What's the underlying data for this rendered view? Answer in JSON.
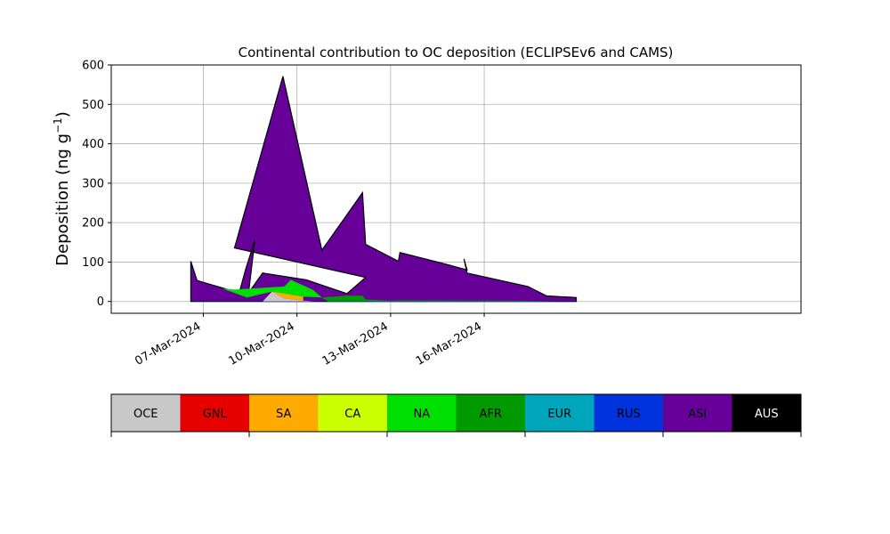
{
  "chart_data": {
    "type": "area",
    "title": "Continental contribution to OC deposition (ECLIPSEv6 and CAMS)",
    "xlabel": "",
    "ylabel": "Deposition (ng g⁻¹)",
    "ylabel_parts": {
      "main": "Deposition (ng g",
      "sup": "−1",
      "end": ")"
    },
    "ylim": [
      -30,
      600
    ],
    "yticks": [
      0,
      100,
      200,
      300,
      400,
      500,
      600
    ],
    "xlim_day": [
      4.05,
      26.15
    ],
    "xticks": [
      {
        "day": 7,
        "label": "07-Mar-2024"
      },
      {
        "day": 10,
        "label": "10-Mar-2024"
      },
      {
        "day": 13,
        "label": "13-Mar-2024"
      },
      {
        "day": 16,
        "label": "16-Mar-2024"
      }
    ],
    "grid": true,
    "legend_position": "below",
    "series": [
      {
        "name": "OCE",
        "color": "#c8c8c8"
      },
      {
        "name": "GNL",
        "color": "#e60000"
      },
      {
        "name": "SA",
        "color": "#ffaa00"
      },
      {
        "name": "CA",
        "color": "#ccff00"
      },
      {
        "name": "NA",
        "color": "#00e000"
      },
      {
        "name": "AFR",
        "color": "#009900"
      },
      {
        "name": "EUR",
        "color": "#00a6bb"
      },
      {
        "name": "RUS",
        "color": "#0033dd"
      },
      {
        "name": "ASI",
        "color": "#660099"
      },
      {
        "name": "AUS",
        "color": "#000000"
      }
    ],
    "total_outline": [
      {
        "day": 6.6,
        "v": 102
      },
      {
        "day": 6.8,
        "v": 53
      },
      {
        "day": 8.15,
        "v": 22
      },
      {
        "day": 8.35,
        "v": 80
      },
      {
        "day": 8.65,
        "v": 155
      },
      {
        "day": 8.45,
        "v": 22
      },
      {
        "day": 8.9,
        "v": 72
      },
      {
        "day": 10.3,
        "v": 55
      },
      {
        "day": 11.6,
        "v": 20
      },
      {
        "day": 12.2,
        "v": 61
      },
      {
        "day": 8.0,
        "v": 136
      },
      {
        "day": 9.55,
        "v": 571
      },
      {
        "day": 10.8,
        "v": 130
      },
      {
        "day": 12.1,
        "v": 276
      },
      {
        "day": 12.2,
        "v": 145
      },
      {
        "day": 13.25,
        "v": 102
      },
      {
        "day": 13.3,
        "v": 124
      },
      {
        "day": 14.8,
        "v": 94
      },
      {
        "day": 15.45,
        "v": 80
      },
      {
        "day": 15.35,
        "v": 108
      },
      {
        "day": 15.45,
        "v": 72
      },
      {
        "day": 17.4,
        "v": 38
      },
      {
        "day": 18.0,
        "v": 14
      },
      {
        "day": 18.95,
        "v": 10
      },
      {
        "day": 18.95,
        "v": 0
      },
      {
        "day": 6.6,
        "v": 0
      }
    ],
    "minor_layers": [
      {
        "name": "OCE",
        "points": [
          {
            "day": 7.6,
            "v": 0
          },
          {
            "day": 8.9,
            "v": 0
          },
          {
            "day": 9.2,
            "v": 25
          },
          {
            "day": 9.6,
            "v": 8
          },
          {
            "day": 10.2,
            "v": 2
          },
          {
            "day": 10.6,
            "v": 0
          }
        ]
      },
      {
        "name": "SA",
        "points": [
          {
            "day": 9.2,
            "v": 25
          },
          {
            "day": 9.7,
            "v": 32
          },
          {
            "day": 10.2,
            "v": 12
          },
          {
            "day": 10.2,
            "v": 2
          },
          {
            "day": 9.6,
            "v": 8
          }
        ]
      },
      {
        "name": "CA",
        "points": [
          {
            "day": 9.2,
            "v": 25
          },
          {
            "day": 9.6,
            "v": 38
          },
          {
            "day": 9.8,
            "v": 45
          },
          {
            "day": 10.4,
            "v": 25
          },
          {
            "day": 10.2,
            "v": 12
          },
          {
            "day": 9.7,
            "v": 32
          }
        ]
      },
      {
        "name": "NA",
        "points": [
          {
            "day": 7.6,
            "v": 33
          },
          {
            "day": 8.0,
            "v": 30
          },
          {
            "day": 9.6,
            "v": 38
          },
          {
            "day": 9.8,
            "v": 55
          },
          {
            "day": 10.5,
            "v": 30
          },
          {
            "day": 10.8,
            "v": 10
          },
          {
            "day": 10.2,
            "v": 12
          },
          {
            "day": 9.2,
            "v": 25
          },
          {
            "day": 8.4,
            "v": 10
          }
        ]
      },
      {
        "name": "AFR",
        "points": [
          {
            "day": 10.8,
            "v": 10
          },
          {
            "day": 11.6,
            "v": 15
          },
          {
            "day": 12.1,
            "v": 15
          },
          {
            "day": 12.2,
            "v": 5
          },
          {
            "day": 13.0,
            "v": 2
          },
          {
            "day": 13.3,
            "v": 3
          },
          {
            "day": 17.0,
            "v": 2
          },
          {
            "day": 18.9,
            "v": 0
          },
          {
            "day": 11.0,
            "v": 0
          }
        ]
      },
      {
        "name": "RUS",
        "points": [
          {
            "day": 6.6,
            "v": 0
          },
          {
            "day": 18.95,
            "v": 0
          },
          {
            "day": 18.95,
            "v": -1
          },
          {
            "day": 6.6,
            "v": -1
          }
        ]
      }
    ]
  }
}
